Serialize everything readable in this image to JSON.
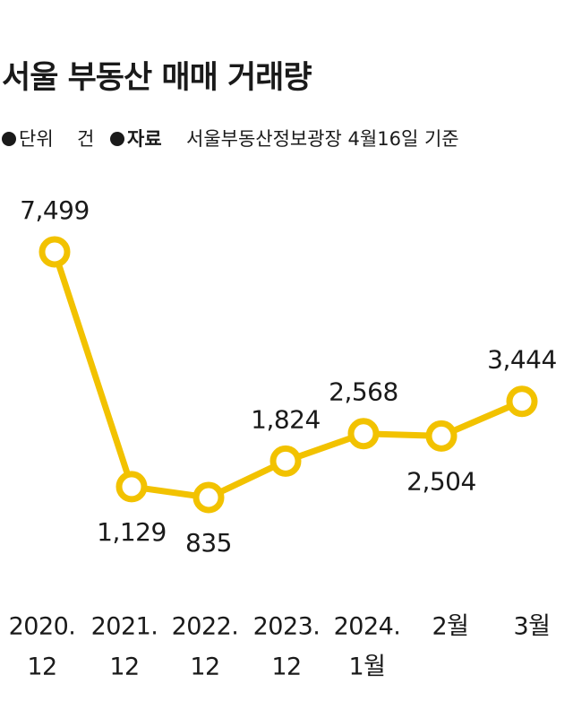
{
  "chart_data": {
    "type": "line",
    "title": "서울 부동산 매매 거래량",
    "unit_label": "단위",
    "unit": "건",
    "source_label": "자료",
    "source": "서울부동산정보광장 4월16일 기준",
    "categories": [
      [
        "2020.",
        "12"
      ],
      [
        "2021.",
        "12"
      ],
      [
        "2022.",
        "12"
      ],
      [
        "2023.",
        "12"
      ],
      [
        "2024.",
        "1월"
      ],
      [
        "2월"
      ],
      [
        "3월"
      ]
    ],
    "values": [
      7499,
      1129,
      835,
      1824,
      2568,
      2504,
      3444
    ],
    "value_labels": [
      "7,499",
      "1,129",
      "835",
      "1,824",
      "2,568",
      "2,504",
      "3,444"
    ],
    "color": "#f2c200"
  }
}
